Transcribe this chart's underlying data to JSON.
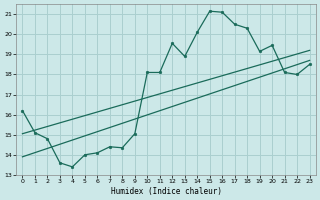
{
  "xlabel": "Humidex (Indice chaleur)",
  "bg_color": "#cce8e8",
  "grid_color": "#aacfcf",
  "line_color": "#1a6b5a",
  "xlim": [
    -0.5,
    23.5
  ],
  "ylim": [
    13,
    21.5
  ],
  "xticks": [
    0,
    1,
    2,
    3,
    4,
    5,
    6,
    7,
    8,
    9,
    10,
    11,
    12,
    13,
    14,
    15,
    16,
    17,
    18,
    19,
    20,
    21,
    22,
    23
  ],
  "yticks": [
    13,
    14,
    15,
    16,
    17,
    18,
    19,
    20,
    21
  ],
  "main_x": [
    0,
    1,
    2,
    3,
    4,
    5,
    6,
    7,
    8,
    9,
    10,
    11,
    12,
    13,
    14,
    15,
    16,
    17,
    18,
    19,
    20,
    21,
    22,
    23
  ],
  "main_y": [
    16.2,
    15.1,
    14.8,
    13.6,
    13.4,
    14.0,
    14.1,
    14.4,
    14.35,
    15.05,
    18.1,
    18.1,
    19.55,
    18.9,
    20.1,
    21.15,
    21.1,
    20.5,
    20.3,
    19.15,
    19.45,
    18.1,
    18.0,
    18.5
  ],
  "line2_x": [
    0,
    23
  ],
  "line2_y": [
    15.05,
    19.2
  ],
  "line3_x": [
    0,
    23
  ],
  "line3_y": [
    13.9,
    18.7
  ]
}
